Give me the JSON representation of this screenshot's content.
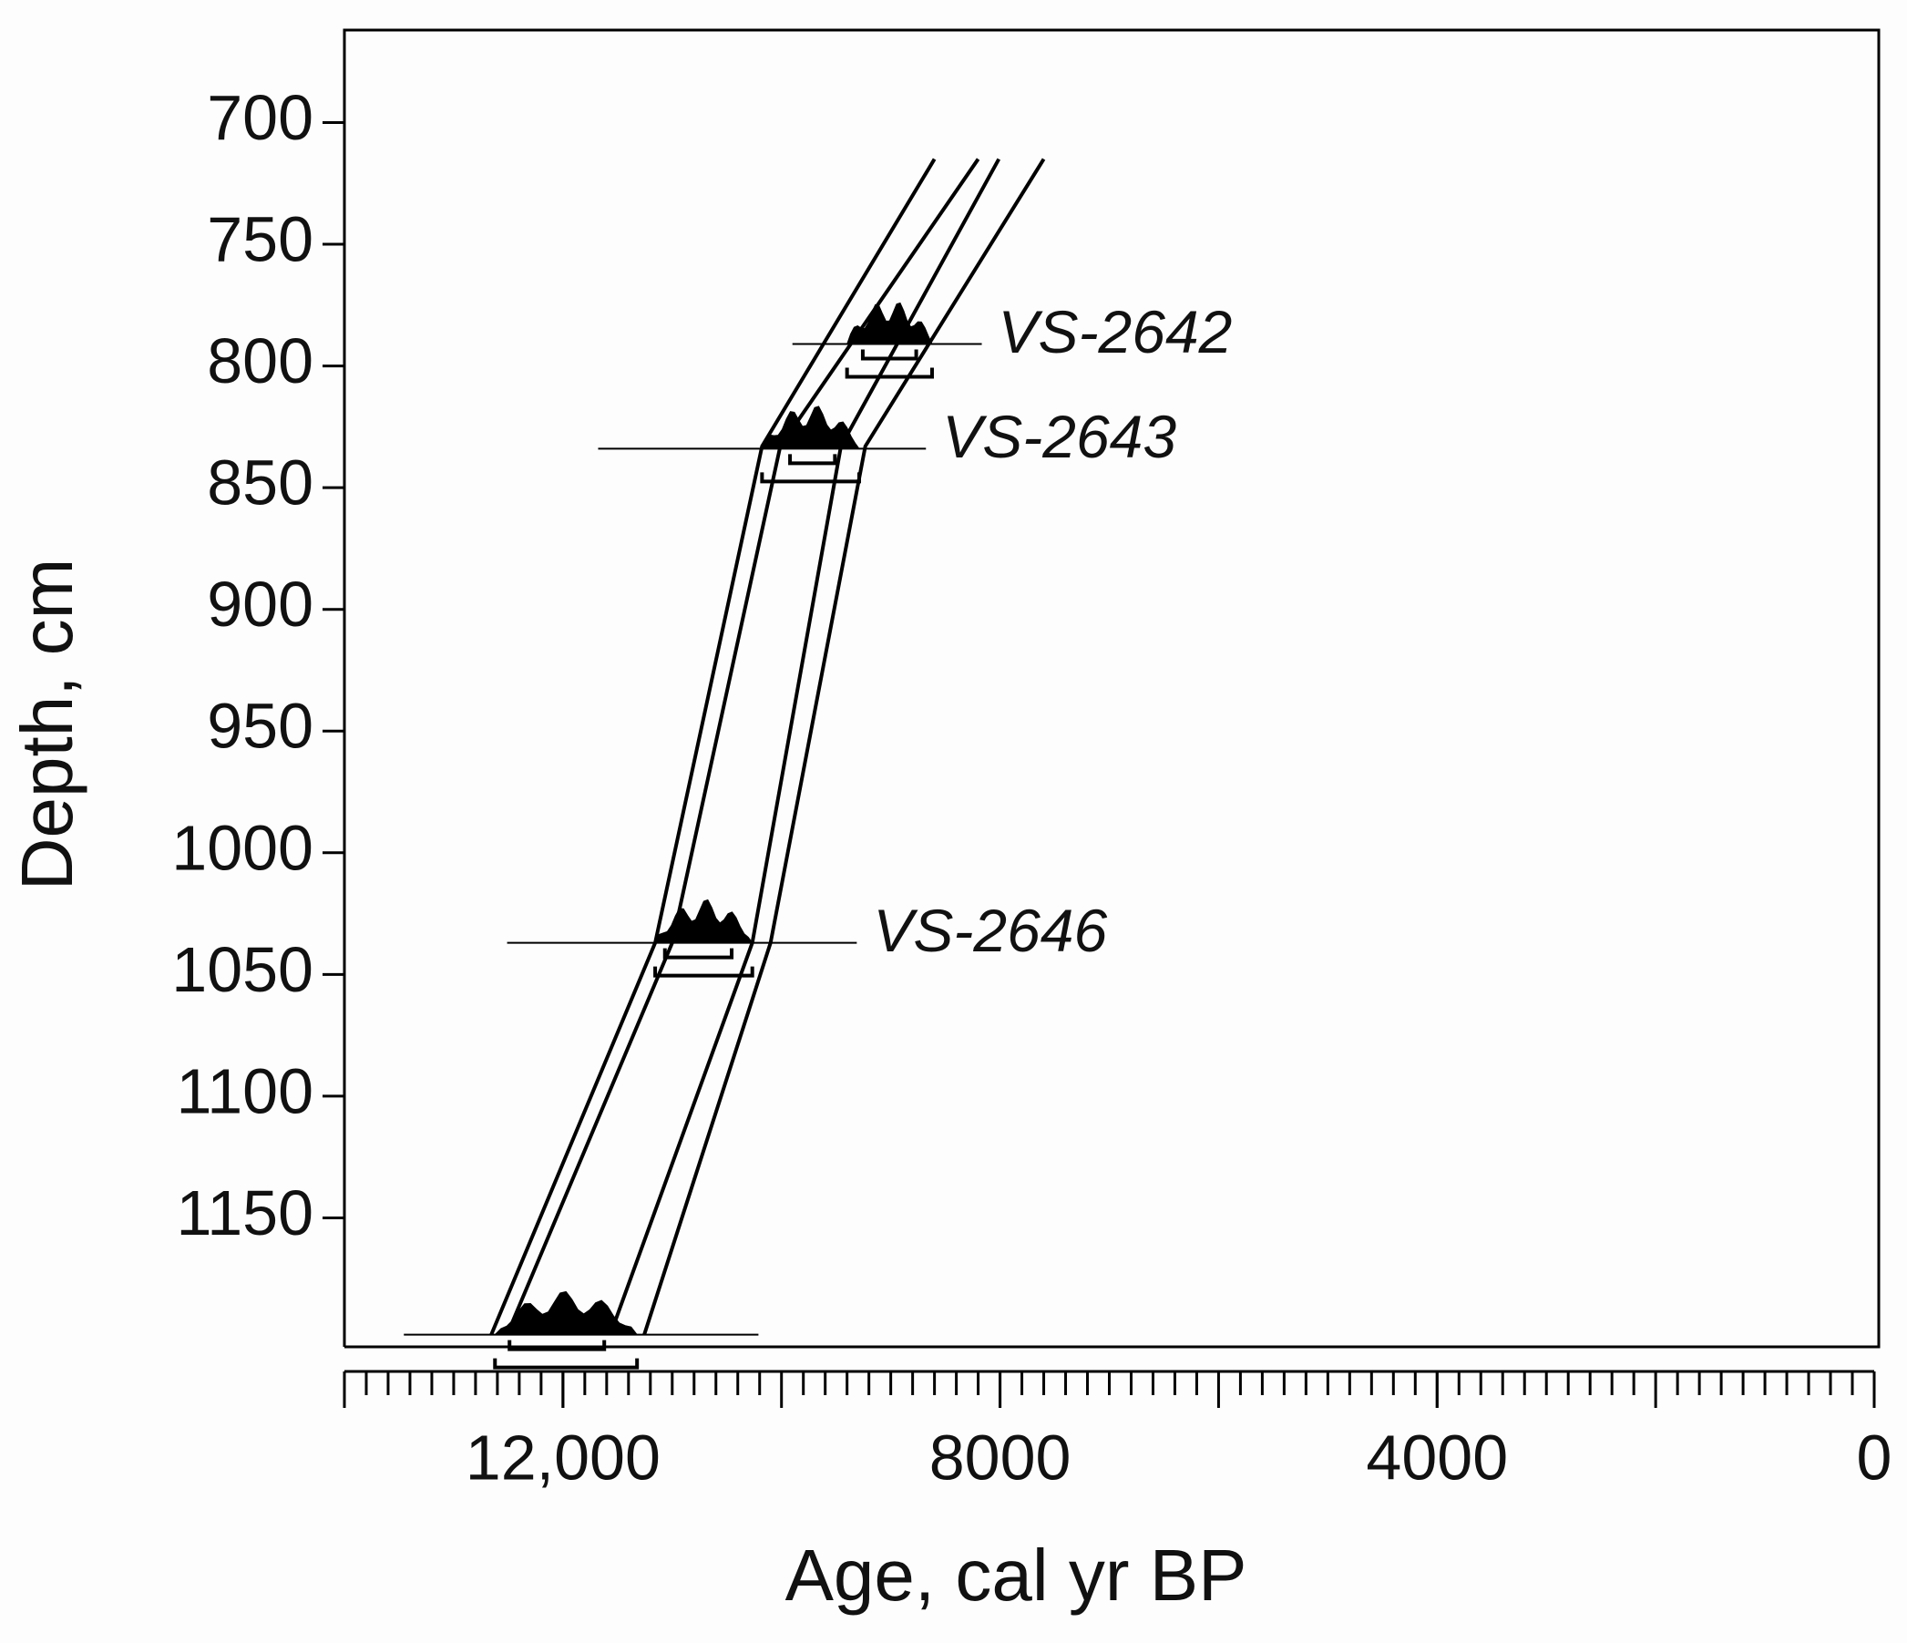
{
  "chart_data": {
    "type": "age-depth",
    "xlabel": "Age, cal yr BP",
    "ylabel": "Depth, cm",
    "xlim": [
      14000,
      0
    ],
    "ylim": [
      662,
      1203
    ],
    "xticks": [
      {
        "value": 12000,
        "label": "12,000"
      },
      8000,
      4000,
      0
    ],
    "xminor_step": 200,
    "xmajor_step": 2000,
    "yticks": [
      700,
      750,
      800,
      850,
      900,
      950,
      1000,
      1050,
      1100,
      1150
    ],
    "color": "#000000",
    "depths": [
      715,
      833,
      1037,
      1198
    ],
    "series": [
      {
        "values": [
          8600,
          10178,
          11156,
          12656
        ]
      },
      {
        "values": [
          8200,
          10011,
          11000,
          12511
        ]
      },
      {
        "values": [
          8011,
          9456,
          10267,
          11567
        ]
      },
      {
        "values": [
          7600,
          9233,
          10100,
          11256
        ]
      }
    ],
    "samples": [
      {
        "label": "VS-2642",
        "depth": 791,
        "dist_range": [
          9900,
          8167
        ],
        "sigma1": [
          9256,
          8767
        ],
        "sigma2": [
          9400,
          8622
        ]
      },
      {
        "label": "VS-2643",
        "depth": 834,
        "dist_range": [
          11678,
          8678
        ],
        "sigma1": [
          9922,
          9511
        ],
        "sigma2": [
          10178,
          9289
        ]
      },
      {
        "label": "VS-2646",
        "depth": 1037,
        "dist_range": [
          12511,
          9311
        ],
        "sigma1": [
          11067,
          10456
        ],
        "sigma2": [
          11156,
          10267
        ]
      },
      {
        "depth": 1198,
        "dist_range": [
          13456,
          10211
        ],
        "sigma1": [
          12489,
          11622
        ],
        "sigma2": [
          12622,
          11322
        ]
      }
    ]
  }
}
